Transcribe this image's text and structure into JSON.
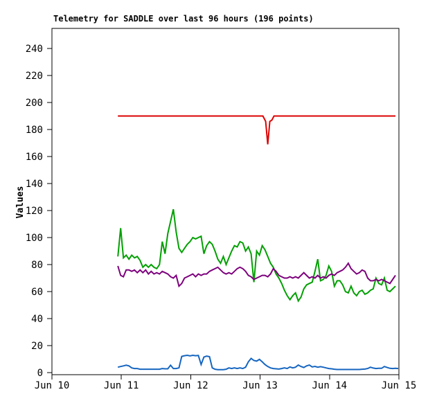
{
  "page": {
    "background": "#ffffff",
    "frame_color": "#000000"
  },
  "chart_data": {
    "type": "line",
    "title": "Telemetry for SADDLE over last 96 hours (196 points)",
    "xlabel": "",
    "ylabel": "Values",
    "grid": false,
    "legend": "none",
    "x_axis": {
      "tick_labels": [
        "Jun 10",
        "Jun 11",
        "Jun 12",
        "Jun 13",
        "Jun 14",
        "Jun 15"
      ],
      "tick_days": [
        0,
        1,
        2,
        3,
        4,
        5
      ],
      "range_days": [
        0,
        5
      ]
    },
    "y_axis": {
      "min": 0,
      "max": 240,
      "tick_step": 20,
      "ticks": [
        0,
        20,
        40,
        60,
        80,
        100,
        120,
        140,
        160,
        180,
        200,
        220,
        240
      ]
    },
    "series": [
      {
        "name": "red",
        "color": "#dd0000",
        "points": [
          [
            0.95,
            190
          ],
          [
            3.04,
            190
          ],
          [
            3.08,
            186
          ],
          [
            3.11,
            169
          ],
          [
            3.14,
            186
          ],
          [
            3.17,
            187
          ],
          [
            3.2,
            190
          ],
          [
            4.95,
            190
          ]
        ]
      },
      {
        "name": "green",
        "color": "#00a000",
        "x_start_day": 0.95,
        "x_step_day": 0.04,
        "values": [
          86,
          107,
          85,
          87,
          84,
          87,
          85,
          86,
          83,
          78,
          80,
          78,
          80,
          78,
          77,
          80,
          97,
          88,
          103,
          112,
          121,
          104,
          92,
          89,
          92,
          95,
          97,
          100,
          99,
          100,
          101,
          88,
          94,
          97,
          95,
          90,
          84,
          81,
          86,
          80,
          85,
          90,
          94,
          93,
          97,
          96,
          90,
          93,
          88,
          67,
          90,
          87,
          94,
          91,
          86,
          81,
          78,
          73,
          70,
          66,
          61,
          57,
          54,
          57,
          59,
          53,
          56,
          62,
          65,
          66,
          67,
          75,
          84,
          68,
          69,
          72,
          79,
          75,
          64,
          68,
          68,
          65,
          60,
          59,
          64,
          59,
          57,
          60,
          61,
          58,
          59,
          61,
          62,
          70,
          66,
          65,
          70,
          61,
          60,
          62,
          64
        ]
      },
      {
        "name": "purple",
        "color": "#7d007d",
        "x_start_day": 0.95,
        "x_step_day": 0.04,
        "values": [
          79,
          72,
          71,
          76,
          76,
          75,
          76,
          74,
          76,
          74,
          76,
          73,
          75,
          73,
          74,
          73,
          75,
          74,
          73,
          71,
          70,
          72,
          64,
          66,
          70,
          71,
          72,
          73,
          71,
          73,
          72,
          73,
          73,
          75,
          76,
          77,
          78,
          76,
          74,
          73,
          74,
          73,
          75,
          77,
          78,
          77,
          75,
          72,
          71,
          69,
          70,
          71,
          72,
          72,
          71,
          73,
          77,
          75,
          72,
          71,
          70,
          70,
          71,
          70,
          71,
          70,
          72,
          74,
          72,
          70,
          71,
          70,
          72,
          70,
          71,
          70,
          72,
          73,
          72,
          74,
          75,
          76,
          78,
          81,
          77,
          75,
          73,
          74,
          76,
          75,
          70,
          68,
          68,
          69,
          68,
          69,
          68,
          67,
          66,
          69,
          72
        ]
      },
      {
        "name": "blue",
        "color": "#1565c0",
        "x_start_day": 0.95,
        "x_step_day": 0.04,
        "values": [
          4,
          4.5,
          5,
          5.5,
          5,
          3.5,
          3,
          3,
          2.5,
          2.5,
          2.5,
          2.5,
          2.5,
          2.5,
          2.5,
          2.5,
          3,
          2.8,
          2.8,
          5.5,
          3,
          3,
          3.5,
          12,
          12.5,
          12.8,
          12.4,
          12.8,
          12.5,
          12.7,
          6,
          11.5,
          12.2,
          11.8,
          3.5,
          2.5,
          2.2,
          2.2,
          2.2,
          2.5,
          3.5,
          3,
          3.5,
          3,
          3.5,
          3,
          4,
          8,
          10.5,
          9,
          8.5,
          9.8,
          8,
          6,
          4.5,
          3.5,
          3,
          2.8,
          2.6,
          3,
          3.5,
          3,
          4.2,
          3.5,
          4,
          5.6,
          4.5,
          3.8,
          5,
          5.6,
          4.2,
          4.6,
          4,
          4.4,
          4,
          3.5,
          3,
          2.8,
          2.5,
          2.3,
          2.3,
          2.3,
          2.3,
          2.3,
          2.3,
          2.3,
          2.3,
          2.3,
          2.5,
          2.6,
          3,
          4,
          3.4,
          3,
          3.2,
          3.2,
          4.5,
          3.8,
          3.2,
          3,
          3.2,
          3
        ]
      }
    ]
  }
}
